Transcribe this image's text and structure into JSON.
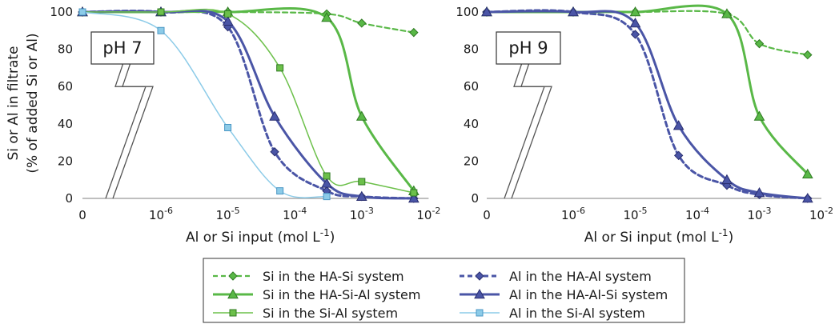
{
  "figure": {
    "ylabel_line1": "Si or Al in filtrate",
    "ylabel_line2": "(% of added Si or Al)"
  },
  "colors": {
    "si_green": "#59b847",
    "si_green_dark": "#2f7a22",
    "al_blue": "#4a55a6",
    "al_blue_dark": "#2a2f70",
    "sial_green": "#6cc04a",
    "sial_blue": "#8ccbe8",
    "sial_blue_edge": "#4b97c4"
  },
  "chart_data": [
    {
      "type": "line",
      "panel_label": "pH 7",
      "xlabel": "Al or Si input (mol L",
      "xlabel_sup": "-1",
      "xlabel_close": ")",
      "x_scale": "log (with break after 0)",
      "xlim": [
        0,
        0.01
      ],
      "ylim": [
        0,
        100
      ],
      "x_ticks": [
        {
          "value": 0,
          "base": "0",
          "exp": ""
        },
        {
          "value": 1e-06,
          "base": "10",
          "exp": "-6"
        },
        {
          "value": 1e-05,
          "base": "10",
          "exp": "-5"
        },
        {
          "value": 0.0001,
          "base": "10",
          "exp": "-4"
        },
        {
          "value": 0.001,
          "base": "10",
          "exp": "-3"
        },
        {
          "value": 0.01,
          "base": "10",
          "exp": "-2"
        }
      ],
      "y_ticks": [
        "0",
        "20",
        "40",
        "60",
        "80",
        "100"
      ],
      "series": [
        {
          "key": "si_ha_si",
          "points": [
            [
              0,
              100
            ],
            [
              1e-06,
              100
            ],
            [
              1e-05,
              100
            ],
            [
              0.0003,
              99
            ],
            [
              0.001,
              94
            ],
            [
              0.006,
              89
            ]
          ]
        },
        {
          "key": "al_ha_al",
          "points": [
            [
              0,
              100
            ],
            [
              1e-06,
              100
            ],
            [
              1e-05,
              92
            ],
            [
              5e-05,
              25
            ],
            [
              0.0003,
              4
            ],
            [
              0.001,
              1
            ],
            [
              0.006,
              0
            ]
          ]
        },
        {
          "key": "si_ha_si_al",
          "points": [
            [
              0,
              100
            ],
            [
              1e-06,
              100
            ],
            [
              1e-05,
              100
            ],
            [
              0.0003,
              97
            ],
            [
              0.001,
              44
            ],
            [
              0.006,
              4
            ]
          ]
        },
        {
          "key": "al_ha_al_si",
          "points": [
            [
              0,
              100
            ],
            [
              1e-06,
              100
            ],
            [
              1e-05,
              95
            ],
            [
              5e-05,
              44
            ],
            [
              0.0003,
              8
            ],
            [
              0.001,
              1
            ],
            [
              0.006,
              0
            ]
          ]
        },
        {
          "key": "si_si_al",
          "points": [
            [
              0,
              100
            ],
            [
              1e-06,
              100
            ],
            [
              1e-05,
              99
            ],
            [
              6e-05,
              70
            ],
            [
              0.0003,
              12
            ],
            [
              0.001,
              9
            ],
            [
              0.006,
              3
            ]
          ]
        },
        {
          "key": "al_si_al",
          "points": [
            [
              0,
              100
            ],
            [
              1e-06,
              90
            ],
            [
              1e-05,
              38
            ],
            [
              6e-05,
              4
            ],
            [
              0.0003,
              1
            ]
          ]
        }
      ]
    },
    {
      "type": "line",
      "panel_label": "pH 9",
      "xlabel": "Al or Si input (mol L",
      "xlabel_sup": "-1",
      "xlabel_close": ")",
      "x_scale": "log (with break after 0)",
      "xlim": [
        0,
        0.01
      ],
      "ylim": [
        0,
        100
      ],
      "x_ticks": [
        {
          "value": 0,
          "base": "0",
          "exp": ""
        },
        {
          "value": 1e-06,
          "base": "10",
          "exp": "-6"
        },
        {
          "value": 1e-05,
          "base": "10",
          "exp": "-5"
        },
        {
          "value": 0.0001,
          "base": "10",
          "exp": "-4"
        },
        {
          "value": 0.001,
          "base": "10",
          "exp": "-3"
        },
        {
          "value": 0.01,
          "base": "10",
          "exp": "-2"
        }
      ],
      "y_ticks": [
        "0",
        "20",
        "40",
        "60",
        "80",
        "100"
      ],
      "series": [
        {
          "key": "si_ha_si",
          "points": [
            [
              0,
              100
            ],
            [
              1e-06,
              100
            ],
            [
              1e-05,
              100
            ],
            [
              0.0003,
              99
            ],
            [
              0.001,
              83
            ],
            [
              0.006,
              77
            ]
          ]
        },
        {
          "key": "al_ha_al",
          "points": [
            [
              0,
              100
            ],
            [
              1e-06,
              100
            ],
            [
              1e-05,
              88
            ],
            [
              5e-05,
              23
            ],
            [
              0.0003,
              7
            ],
            [
              0.001,
              2
            ],
            [
              0.006,
              0
            ]
          ]
        },
        {
          "key": "si_ha_si_al",
          "points": [
            [
              0,
              100
            ],
            [
              1e-06,
              100
            ],
            [
              1e-05,
              100
            ],
            [
              0.0003,
              99
            ],
            [
              0.001,
              44
            ],
            [
              0.006,
              13
            ]
          ]
        },
        {
          "key": "al_ha_al_si",
          "points": [
            [
              0,
              100
            ],
            [
              1e-06,
              100
            ],
            [
              1e-05,
              94
            ],
            [
              5e-05,
              39
            ],
            [
              0.0003,
              10
            ],
            [
              0.001,
              3
            ],
            [
              0.006,
              0
            ]
          ]
        }
      ]
    }
  ],
  "legend": [
    {
      "key": "si_ha_si",
      "label": "Si in the HA-Si system"
    },
    {
      "key": "al_ha_al",
      "label": "Al in the HA-Al system"
    },
    {
      "key": "si_ha_si_al",
      "label": "Si in the HA-Si-Al system"
    },
    {
      "key": "al_ha_al_si",
      "label": "Al in the HA-Al-Si system"
    },
    {
      "key": "si_si_al",
      "label": "Si in the Si-Al system"
    },
    {
      "key": "al_si_al",
      "label": "Al in the Si-Al system"
    }
  ]
}
